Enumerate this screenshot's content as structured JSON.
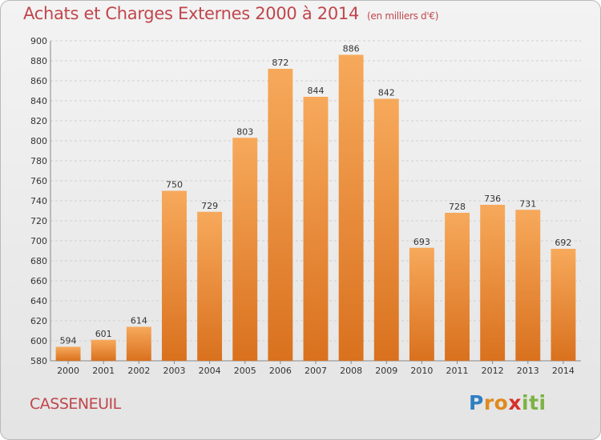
{
  "title": "Achats et Charges Externes 2000 à 2014",
  "subtitle": "(en milliers d'€)",
  "town": "CASSENEUIL",
  "logo": {
    "letters": [
      "P",
      "r",
      "o",
      "x",
      "i",
      "t",
      "i"
    ],
    "colors": [
      "#2f7fc2",
      "#e08a1e",
      "#e08a1e",
      "#d6312b",
      "#7cb342",
      "#7cb342",
      "#7cb342"
    ]
  },
  "colors": {
    "bar_top": "#f7a95b",
    "bar_bottom": "#d9711e",
    "grid": "#cfcfcf",
    "title": "#c0464c"
  },
  "chart_data": {
    "type": "bar",
    "title": "Achats et Charges Externes 2000 à 2014",
    "subtitle": "(en milliers d'€)",
    "categories": [
      "2000",
      "2001",
      "2002",
      "2003",
      "2004",
      "2005",
      "2006",
      "2007",
      "2008",
      "2009",
      "2010",
      "2011",
      "2012",
      "2013",
      "2014"
    ],
    "values": [
      594,
      601,
      614,
      750,
      729,
      803,
      872,
      844,
      886,
      842,
      693,
      728,
      736,
      731,
      692
    ],
    "ylim": [
      580,
      900
    ],
    "yticks": [
      580,
      600,
      620,
      640,
      660,
      680,
      700,
      720,
      740,
      760,
      780,
      800,
      820,
      840,
      860,
      880,
      900
    ],
    "grid": true,
    "data_labels": true
  }
}
